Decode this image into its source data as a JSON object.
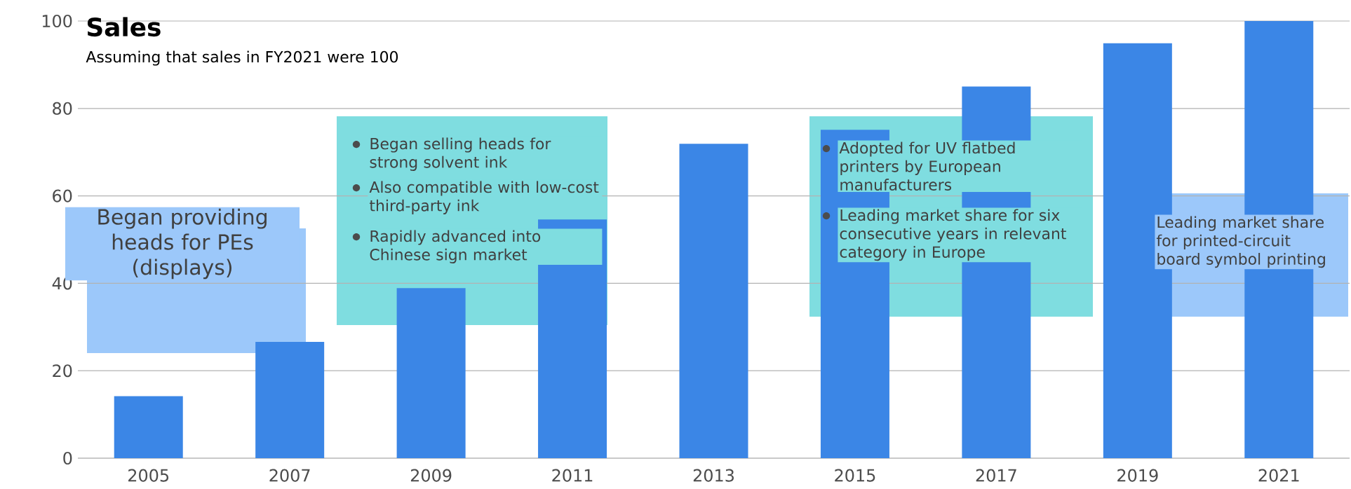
{
  "chart_data": {
    "type": "bar",
    "title": "Sales",
    "subtitle": "Assuming that sales in FY2021 were 100",
    "categories": [
      "2005",
      "2007",
      "2009",
      "2011",
      "2013",
      "2015",
      "2017",
      "2019",
      "2021"
    ],
    "values": [
      14.2,
      26.6,
      38.9,
      54.6,
      71.9,
      75.1,
      85.0,
      94.9,
      100
    ],
    "color": "#3b86e6",
    "ylim": [
      0,
      100
    ],
    "yticks": [
      0,
      20,
      40,
      60,
      80,
      100
    ],
    "grid": "y",
    "annotations": [
      "Began providing heads for PEs (displays)",
      "Began selling heads for strong solvent ink",
      "Also compatible with low-cost third-party ink",
      "Rapidly advanced into Chinese sign market",
      "Adopted for UV flatbed printers by European manufacturers",
      "Leading market share for six consecutive years in relevant category in Europe",
      "Leading market share for printed-circuit board symbol printing"
    ]
  }
}
